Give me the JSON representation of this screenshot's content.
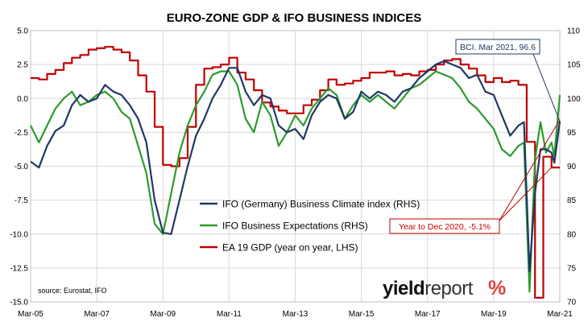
{
  "chart_data": {
    "type": "line",
    "title": "EURO-ZONE GDP & IFO BUSINESS INDICES",
    "x_range": [
      "2005-03",
      "2021-03"
    ],
    "x_ticks": [
      "Mar-05",
      "Mar-07",
      "Mar-09",
      "Mar-11",
      "Mar-13",
      "Mar-15",
      "Mar-17",
      "Mar-19",
      "Mar-21"
    ],
    "y_left": {
      "range": [
        -15.0,
        5.0
      ],
      "ticks": [
        "5.0",
        "2.5",
        "0.0",
        "-2.5",
        "-5.0",
        "-7.5",
        "-10.0",
        "-12.5",
        "-15.0"
      ]
    },
    "y_right": {
      "range": [
        70,
        110
      ],
      "ticks": [
        "110",
        "105",
        "100",
        "95",
        "90",
        "85",
        "80",
        "75",
        "70"
      ]
    },
    "grid": true,
    "legend_position": "center-left",
    "series": [
      {
        "name": "IFO (Germany) Business Climate index (RHS)",
        "axis": "right",
        "color": "#1f3864",
        "points": [
          [
            "2005-03",
            90.7
          ],
          [
            "2005-06",
            89.8
          ],
          [
            "2005-09",
            93.0
          ],
          [
            "2005-12",
            95.2
          ],
          [
            "2006-03",
            96.0
          ],
          [
            "2006-06",
            99.0
          ],
          [
            "2006-09",
            100.5
          ],
          [
            "2006-12",
            99.5
          ],
          [
            "2007-03",
            100.0
          ],
          [
            "2007-06",
            102.0
          ],
          [
            "2007-09",
            101.0
          ],
          [
            "2007-12",
            100.5
          ],
          [
            "2008-03",
            99.0
          ],
          [
            "2008-06",
            97.0
          ],
          [
            "2008-09",
            93.5
          ],
          [
            "2008-12",
            85.0
          ],
          [
            "2009-03",
            80.2
          ],
          [
            "2009-06",
            80.0
          ],
          [
            "2009-09",
            85.0
          ],
          [
            "2009-12",
            90.0
          ],
          [
            "2010-03",
            94.5
          ],
          [
            "2010-06",
            97.0
          ],
          [
            "2010-09",
            100.0
          ],
          [
            "2010-12",
            102.0
          ],
          [
            "2011-03",
            104.5
          ],
          [
            "2011-06",
            104.5
          ],
          [
            "2011-09",
            101.0
          ],
          [
            "2011-12",
            99.0
          ],
          [
            "2012-03",
            100.5
          ],
          [
            "2012-06",
            100.0
          ],
          [
            "2012-09",
            96.0
          ],
          [
            "2012-12",
            95.0
          ],
          [
            "2013-03",
            95.5
          ],
          [
            "2013-06",
            94.0
          ],
          [
            "2013-09",
            97.5
          ],
          [
            "2013-12",
            99.5
          ],
          [
            "2014-03",
            100.5
          ],
          [
            "2014-06",
            100.0
          ],
          [
            "2014-09",
            97.0
          ],
          [
            "2014-12",
            98.0
          ],
          [
            "2015-03",
            101.0
          ],
          [
            "2015-06",
            100.0
          ],
          [
            "2015-09",
            101.0
          ],
          [
            "2015-12",
            100.5
          ],
          [
            "2016-03",
            99.5
          ],
          [
            "2016-06",
            101.0
          ],
          [
            "2016-09",
            101.5
          ],
          [
            "2016-12",
            103.0
          ],
          [
            "2017-03",
            104.0
          ],
          [
            "2017-06",
            105.0
          ],
          [
            "2017-09",
            105.5
          ],
          [
            "2017-12",
            105.0
          ],
          [
            "2018-03",
            104.5
          ],
          [
            "2018-06",
            103.0
          ],
          [
            "2018-09",
            103.5
          ],
          [
            "2018-12",
            101.0
          ],
          [
            "2019-03",
            100.5
          ],
          [
            "2019-06",
            97.5
          ],
          [
            "2019-09",
            94.5
          ],
          [
            "2019-12",
            96.0
          ],
          [
            "2020-02",
            96.5
          ],
          [
            "2020-04",
            74.5
          ],
          [
            "2020-06",
            86.0
          ],
          [
            "2020-08",
            92.5
          ],
          [
            "2020-10",
            92.5
          ],
          [
            "2020-12",
            92.0
          ],
          [
            "2021-01",
            90.5
          ],
          [
            "2021-03",
            96.6
          ]
        ]
      },
      {
        "name": "IFO Business Expectations (RHS)",
        "axis": "right",
        "color": "#2e9a2e",
        "points": [
          [
            "2005-03",
            96.0
          ],
          [
            "2005-06",
            93.5
          ],
          [
            "2005-09",
            96.0
          ],
          [
            "2005-12",
            98.5
          ],
          [
            "2006-03",
            100.0
          ],
          [
            "2006-06",
            101.0
          ],
          [
            "2006-09",
            99.0
          ],
          [
            "2006-12",
            99.5
          ],
          [
            "2007-03",
            100.5
          ],
          [
            "2007-06",
            101.0
          ],
          [
            "2007-09",
            100.0
          ],
          [
            "2007-12",
            98.0
          ],
          [
            "2008-03",
            97.0
          ],
          [
            "2008-06",
            93.0
          ],
          [
            "2008-09",
            89.0
          ],
          [
            "2008-12",
            81.5
          ],
          [
            "2009-03",
            80.0
          ],
          [
            "2009-06",
            86.0
          ],
          [
            "2009-09",
            92.0
          ],
          [
            "2009-12",
            96.0
          ],
          [
            "2010-03",
            99.0
          ],
          [
            "2010-06",
            101.0
          ],
          [
            "2010-09",
            103.5
          ],
          [
            "2010-12",
            104.0
          ],
          [
            "2011-03",
            104.0
          ],
          [
            "2011-06",
            102.0
          ],
          [
            "2011-09",
            97.0
          ],
          [
            "2011-12",
            95.0
          ],
          [
            "2012-03",
            99.5
          ],
          [
            "2012-06",
            97.5
          ],
          [
            "2012-09",
            93.0
          ],
          [
            "2012-12",
            95.0
          ],
          [
            "2013-03",
            97.5
          ],
          [
            "2013-06",
            96.0
          ],
          [
            "2013-09",
            98.5
          ],
          [
            "2013-12",
            100.0
          ],
          [
            "2014-03",
            101.5
          ],
          [
            "2014-06",
            100.5
          ],
          [
            "2014-09",
            97.0
          ],
          [
            "2014-12",
            99.0
          ],
          [
            "2015-03",
            100.5
          ],
          [
            "2015-06",
            99.5
          ],
          [
            "2015-09",
            100.5
          ],
          [
            "2015-12",
            99.5
          ],
          [
            "2016-03",
            98.5
          ],
          [
            "2016-06",
            100.0
          ],
          [
            "2016-09",
            101.5
          ],
          [
            "2016-12",
            102.0
          ],
          [
            "2017-03",
            103.0
          ],
          [
            "2017-06",
            104.0
          ],
          [
            "2017-09",
            103.5
          ],
          [
            "2017-12",
            103.0
          ],
          [
            "2018-03",
            101.5
          ],
          [
            "2018-06",
            99.5
          ],
          [
            "2018-09",
            98.5
          ],
          [
            "2018-12",
            97.0
          ],
          [
            "2019-03",
            95.5
          ],
          [
            "2019-06",
            92.5
          ],
          [
            "2019-09",
            91.5
          ],
          [
            "2019-12",
            93.0
          ],
          [
            "2020-02",
            93.5
          ],
          [
            "2020-04",
            71.5
          ],
          [
            "2020-06",
            91.0
          ],
          [
            "2020-08",
            96.5
          ],
          [
            "2020-10",
            92.0
          ],
          [
            "2020-12",
            93.5
          ],
          [
            "2021-01",
            91.5
          ],
          [
            "2021-03",
            100.5
          ]
        ]
      },
      {
        "name": "EA 19 GDP (year on year, LHS)",
        "axis": "left",
        "color": "#c00000",
        "step": true,
        "points": [
          [
            "2005-03",
            1.5
          ],
          [
            "2005-06",
            1.4
          ],
          [
            "2005-09",
            1.8
          ],
          [
            "2005-12",
            2.1
          ],
          [
            "2006-03",
            2.6
          ],
          [
            "2006-06",
            3.0
          ],
          [
            "2006-09",
            3.2
          ],
          [
            "2006-12",
            3.6
          ],
          [
            "2007-03",
            3.7
          ],
          [
            "2007-06",
            3.8
          ],
          [
            "2007-09",
            3.6
          ],
          [
            "2007-12",
            3.4
          ],
          [
            "2008-03",
            2.8
          ],
          [
            "2008-06",
            1.7
          ],
          [
            "2008-09",
            0.5
          ],
          [
            "2008-12",
            -2.1
          ],
          [
            "2009-03",
            -4.9
          ],
          [
            "2009-06",
            -5.0
          ],
          [
            "2009-09",
            -4.4
          ],
          [
            "2009-12",
            -2.1
          ],
          [
            "2010-03",
            1.0
          ],
          [
            "2010-06",
            2.2
          ],
          [
            "2010-09",
            2.3
          ],
          [
            "2010-12",
            2.5
          ],
          [
            "2011-03",
            3.0
          ],
          [
            "2011-06",
            1.9
          ],
          [
            "2011-09",
            1.4
          ],
          [
            "2011-12",
            0.6
          ],
          [
            "2012-03",
            -0.3
          ],
          [
            "2012-06",
            -0.6
          ],
          [
            "2012-09",
            -0.9
          ],
          [
            "2012-12",
            -1.1
          ],
          [
            "2013-03",
            -1.1
          ],
          [
            "2013-06",
            -0.5
          ],
          [
            "2013-09",
            -0.1
          ],
          [
            "2013-12",
            0.6
          ],
          [
            "2014-03",
            1.4
          ],
          [
            "2014-06",
            1.0
          ],
          [
            "2014-09",
            1.1
          ],
          [
            "2014-12",
            1.3
          ],
          [
            "2015-03",
            1.5
          ],
          [
            "2015-06",
            1.9
          ],
          [
            "2015-09",
            1.9
          ],
          [
            "2015-12",
            2.0
          ],
          [
            "2016-03",
            1.7
          ],
          [
            "2016-06",
            1.8
          ],
          [
            "2016-09",
            1.7
          ],
          [
            "2016-12",
            2.0
          ],
          [
            "2017-03",
            2.1
          ],
          [
            "2017-06",
            2.5
          ],
          [
            "2017-09",
            2.8
          ],
          [
            "2017-12",
            2.9
          ],
          [
            "2018-03",
            2.5
          ],
          [
            "2018-06",
            2.2
          ],
          [
            "2018-09",
            1.7
          ],
          [
            "2018-12",
            1.2
          ],
          [
            "2019-03",
            1.5
          ],
          [
            "2019-06",
            1.2
          ],
          [
            "2019-09",
            1.3
          ],
          [
            "2019-12",
            1.0
          ],
          [
            "2020-03",
            -3.2
          ],
          [
            "2020-06",
            -14.7
          ],
          [
            "2020-09",
            -4.3
          ],
          [
            "2020-12",
            -5.1
          ],
          [
            "2021-03",
            -5.1
          ]
        ]
      }
    ],
    "annotations": [
      {
        "text": "BCI. Mar 2021, 96.6",
        "target": {
          "date": "2021-03",
          "axis": "right",
          "value": 96.6
        },
        "color": "#1f3864"
      },
      {
        "text": "Year to Dec 2020, -5.1%",
        "target": {
          "date": "2020-12",
          "axis": "left",
          "value": -5.1
        },
        "color": "#c00000"
      }
    ],
    "source": "source: Eurostat, IFO",
    "logo": {
      "text_plain": "yield",
      "text_bold": "report",
      "symbol": "%"
    }
  }
}
